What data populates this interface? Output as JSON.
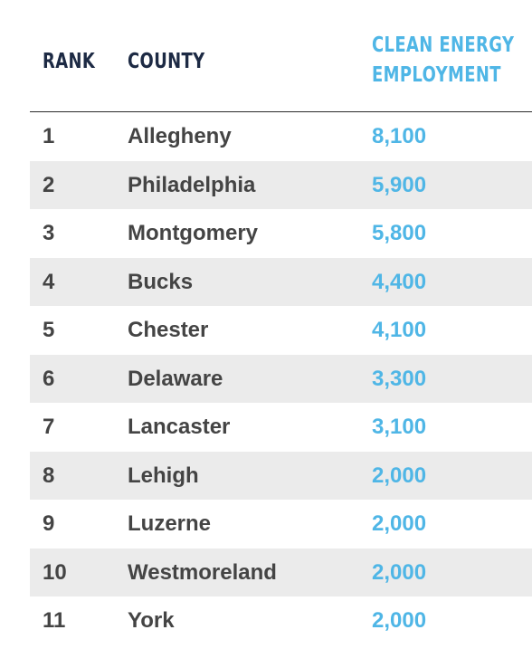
{
  "headers": {
    "rank": "RANK",
    "county": "COUNTY",
    "employment_line1": "CLEAN ENERGY",
    "employment_line2": "EMPLOYMENT"
  },
  "rows": [
    {
      "rank": "1",
      "county": "Allegheny",
      "employment": "8,100"
    },
    {
      "rank": "2",
      "county": "Philadelphia",
      "employment": "5,900"
    },
    {
      "rank": "3",
      "county": "Montgomery",
      "employment": "5,800"
    },
    {
      "rank": "4",
      "county": "Bucks",
      "employment": "4,400"
    },
    {
      "rank": "5",
      "county": "Chester",
      "employment": "4,100"
    },
    {
      "rank": "6",
      "county": "Delaware",
      "employment": "3,300"
    },
    {
      "rank": "7",
      "county": "Lancaster",
      "employment": "3,100"
    },
    {
      "rank": "8",
      "county": "Lehigh",
      "employment": "2,000"
    },
    {
      "rank": "9",
      "county": "Luzerne",
      "employment": "2,000"
    },
    {
      "rank": "10",
      "county": "Westmoreland",
      "employment": "2,000"
    },
    {
      "rank": "11",
      "county": "York",
      "employment": "2,000"
    }
  ],
  "colors": {
    "header_dark": "#1d2a44",
    "accent_blue": "#4fb6e6",
    "body_text": "#444444",
    "shaded_row": "#ebebeb"
  }
}
